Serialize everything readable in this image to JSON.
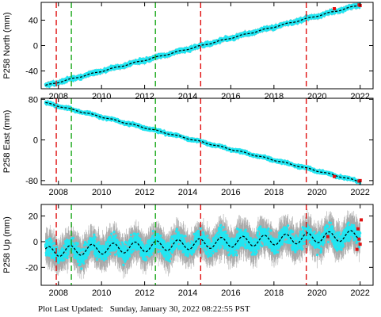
{
  "footer": {
    "label": "Plot Last Updated:",
    "timestamp": "Sunday, January 30, 2022 08:22:55 PST"
  },
  "colors": {
    "observations": "#22e6f2",
    "error_bars": "#a9a9a9",
    "model": "#000000",
    "outliers": "#e01010",
    "red_marker_lines": "#e01010",
    "green_marker_lines": "#1aa81a"
  },
  "chart_data": [
    {
      "type": "scatter",
      "ylabel": "P258 North (mm)",
      "xlim": [
        2007.2,
        2022.6
      ],
      "ylim": [
        -68,
        68
      ],
      "x_ticks": [
        2008,
        2010,
        2012,
        2014,
        2016,
        2018,
        2020,
        2022
      ],
      "y_ticks": [
        -40,
        0,
        40
      ],
      "trend": {
        "x": [
          2007.4,
          2022.0
        ],
        "y": [
          -63,
          64
        ]
      },
      "seasonal_amplitude": 0.8,
      "noise": 2.2,
      "error_bar": 2.5,
      "outliers": [
        {
          "x": 2020.8,
          "y": 58
        },
        {
          "x": 2021.95,
          "y": 64
        },
        {
          "x": 2022.0,
          "y": 63
        }
      ],
      "red_lines": [
        2007.9,
        2014.6,
        2019.5
      ],
      "green_lines": [
        2008.6,
        2012.5
      ]
    },
    {
      "type": "scatter",
      "ylabel": "P258 East (mm)",
      "xlim": [
        2007.2,
        2022.6
      ],
      "ylim": [
        -88,
        82
      ],
      "x_ticks": [
        2008,
        2010,
        2012,
        2014,
        2016,
        2018,
        2020,
        2022
      ],
      "y_ticks": [
        -80,
        0,
        80
      ],
      "trend": {
        "x": [
          2007.4,
          2022.0
        ],
        "y": [
          73,
          -82
        ]
      },
      "seasonal_amplitude": 1.0,
      "noise": 2.2,
      "error_bar": 2.5,
      "outliers": [
        {
          "x": 2020.8,
          "y": -72
        },
        {
          "x": 2021.95,
          "y": -81
        },
        {
          "x": 2022.0,
          "y": -80
        }
      ],
      "red_lines": [
        2007.9,
        2014.6,
        2019.5
      ],
      "green_lines": [
        2008.6,
        2012.5
      ]
    },
    {
      "type": "scatter",
      "ylabel": "P258 Up (mm)",
      "xlim": [
        2007.2,
        2022.6
      ],
      "ylim": [
        -34,
        29
      ],
      "x_ticks": [
        2008,
        2010,
        2012,
        2014,
        2016,
        2018,
        2020,
        2022
      ],
      "y_ticks": [
        -20,
        0,
        20
      ],
      "trend": {
        "x": [
          2007.4,
          2022.0
        ],
        "y": [
          -8,
          5
        ]
      },
      "seasonal_amplitude": 4,
      "noise": 5,
      "error_bar": 9,
      "outliers": [
        {
          "x": 2020.5,
          "y": 4
        },
        {
          "x": 2021.9,
          "y": 10
        },
        {
          "x": 2021.95,
          "y": 2
        },
        {
          "x": 2022.0,
          "y": -2
        },
        {
          "x": 2022.05,
          "y": 17
        },
        {
          "x": 2021.85,
          "y": -6
        }
      ],
      "red_lines": [
        2007.9,
        2014.6,
        2019.5
      ],
      "green_lines": [
        2008.6,
        2012.5
      ]
    }
  ]
}
